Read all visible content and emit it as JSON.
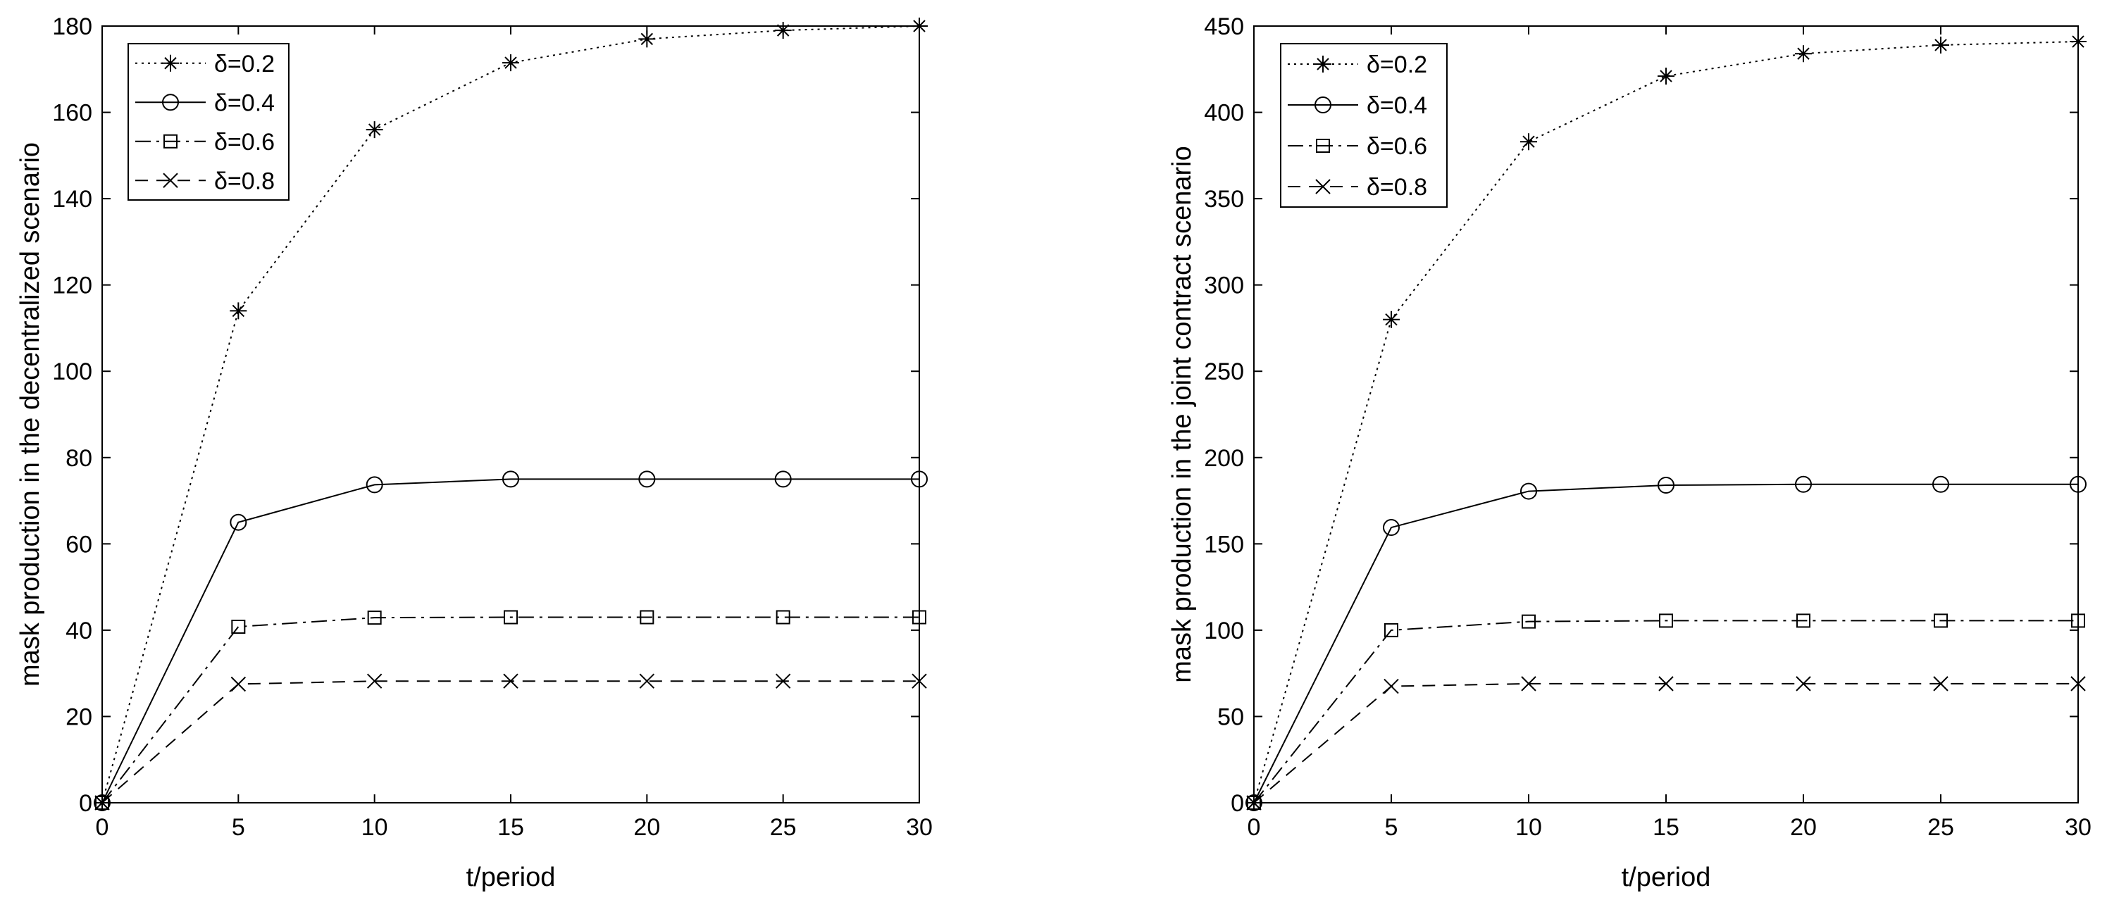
{
  "chart_data": [
    {
      "type": "line",
      "title": "",
      "xlabel": "t/period",
      "ylabel": "mask production in the decentralized scenario",
      "xlim": [
        0,
        30
      ],
      "ylim": [
        0,
        180
      ],
      "xticks": [
        0,
        5,
        10,
        15,
        20,
        25,
        30
      ],
      "yticks": [
        0,
        20,
        40,
        60,
        80,
        100,
        120,
        140,
        160,
        180
      ],
      "grid": false,
      "legend": "top-left",
      "x": [
        0,
        5,
        10,
        15,
        20,
        25,
        30
      ],
      "series": [
        {
          "name": "δ=0.2",
          "marker": "asterisk",
          "line": "dotted",
          "values": [
            0,
            114,
            156,
            171.5,
            177,
            179,
            180
          ]
        },
        {
          "name": "δ=0.4",
          "marker": "circle",
          "line": "solid",
          "values": [
            0,
            65,
            73.7,
            75,
            75,
            75,
            75
          ]
        },
        {
          "name": "δ=0.6",
          "marker": "square",
          "line": "dashdot",
          "values": [
            0,
            40.8,
            42.9,
            43,
            43,
            43,
            43
          ]
        },
        {
          "name": "δ=0.8",
          "marker": "x",
          "line": "dashed",
          "values": [
            0,
            27.5,
            28.2,
            28.2,
            28.2,
            28.2,
            28.2
          ]
        }
      ]
    },
    {
      "type": "line",
      "title": "",
      "xlabel": "t/period",
      "ylabel": "mask production in the joint contract  scenario",
      "xlim": [
        0,
        30
      ],
      "ylim": [
        0,
        450
      ],
      "xticks": [
        0,
        5,
        10,
        15,
        20,
        25,
        30
      ],
      "yticks": [
        0,
        50,
        100,
        150,
        200,
        250,
        300,
        350,
        400,
        450
      ],
      "grid": false,
      "legend": "top-left",
      "x": [
        0,
        5,
        10,
        15,
        20,
        25,
        30
      ],
      "series": [
        {
          "name": "δ=0.2",
          "marker": "asterisk",
          "line": "dotted",
          "values": [
            0,
            280,
            383,
            421,
            434,
            439,
            441
          ]
        },
        {
          "name": "δ=0.4",
          "marker": "circle",
          "line": "solid",
          "values": [
            0,
            159.5,
            180.5,
            184,
            184.5,
            184.5,
            184.5
          ]
        },
        {
          "name": "δ=0.6",
          "marker": "square",
          "line": "dashdot",
          "values": [
            0,
            100,
            105,
            105.5,
            105.5,
            105.5,
            105.5
          ]
        },
        {
          "name": "δ=0.8",
          "marker": "x",
          "line": "dashed",
          "values": [
            0,
            67.5,
            69,
            69,
            69,
            69,
            69
          ]
        }
      ]
    }
  ]
}
